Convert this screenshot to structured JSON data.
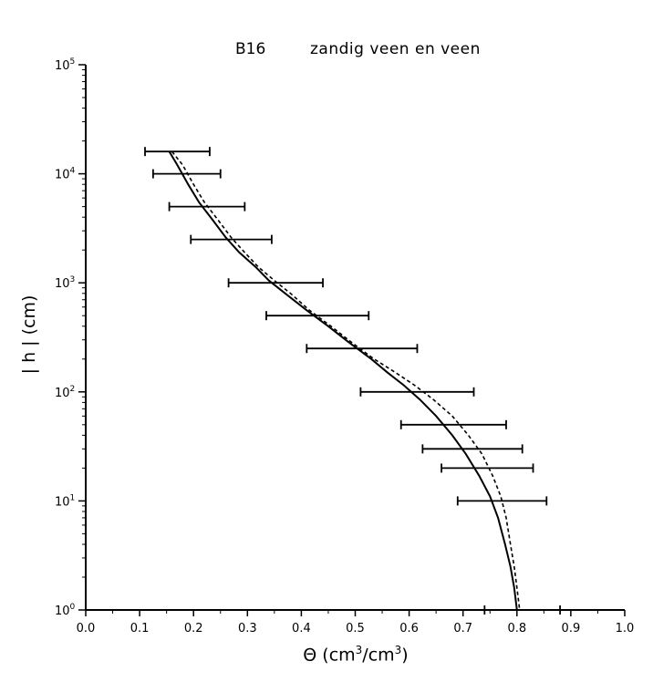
{
  "chart_data": {
    "type": "line",
    "title_code": "B16",
    "title_text": "zandig veen en veen",
    "xlabel_symbol": "Θ",
    "xlabel_units_a": "(cm",
    "xlabel_units_b": "/cm",
    "xlabel_units_c": ")",
    "xlabel_superscript": "3",
    "ylabel": "| h | (cm)",
    "xlim": [
      0.0,
      1.0
    ],
    "ylim": [
      1,
      100000
    ],
    "yscale": "log",
    "grid": false,
    "x_ticks": [
      "0.0",
      "0.1",
      "0.2",
      "0.3",
      "0.4",
      "0.5",
      "0.6",
      "0.7",
      "0.8",
      "0.9",
      "1.0"
    ],
    "y_ticks": [
      {
        "base": "10",
        "exp": "0",
        "value": 1
      },
      {
        "base": "10",
        "exp": "1",
        "value": 10
      },
      {
        "base": "10",
        "exp": "2",
        "value": 100
      },
      {
        "base": "10",
        "exp": "3",
        "value": 1000
      },
      {
        "base": "10",
        "exp": "4",
        "value": 10000
      },
      {
        "base": "10",
        "exp": "5",
        "value": 100000
      }
    ],
    "series": [
      {
        "style": "solid",
        "points": [
          [
            0.155,
            16000
          ],
          [
            0.17,
            12000
          ],
          [
            0.19,
            8000
          ],
          [
            0.21,
            5500
          ],
          [
            0.235,
            3800
          ],
          [
            0.26,
            2600
          ],
          [
            0.285,
            1900
          ],
          [
            0.315,
            1400
          ],
          [
            0.34,
            1050
          ],
          [
            0.37,
            800
          ],
          [
            0.41,
            560
          ],
          [
            0.45,
            400
          ],
          [
            0.49,
            280
          ],
          [
            0.53,
            200
          ],
          [
            0.56,
            150
          ],
          [
            0.59,
            115
          ],
          [
            0.62,
            85
          ],
          [
            0.65,
            60
          ],
          [
            0.68,
            40
          ],
          [
            0.705,
            27
          ],
          [
            0.73,
            17
          ],
          [
            0.75,
            11
          ],
          [
            0.765,
            7
          ],
          [
            0.778,
            4
          ],
          [
            0.788,
            2.5
          ],
          [
            0.795,
            1.6
          ],
          [
            0.8,
            1.0
          ]
        ]
      },
      {
        "style": "dashed",
        "points": [
          [
            0.16,
            16000
          ],
          [
            0.18,
            12000
          ],
          [
            0.2,
            8000
          ],
          [
            0.22,
            5500
          ],
          [
            0.245,
            3800
          ],
          [
            0.27,
            2600
          ],
          [
            0.295,
            1900
          ],
          [
            0.32,
            1400
          ],
          [
            0.35,
            1050
          ],
          [
            0.38,
            800
          ],
          [
            0.415,
            560
          ],
          [
            0.455,
            400
          ],
          [
            0.495,
            280
          ],
          [
            0.535,
            200
          ],
          [
            0.575,
            150
          ],
          [
            0.61,
            115
          ],
          [
            0.645,
            85
          ],
          [
            0.68,
            60
          ],
          [
            0.71,
            40
          ],
          [
            0.735,
            27
          ],
          [
            0.755,
            17
          ],
          [
            0.77,
            11
          ],
          [
            0.78,
            7
          ],
          [
            0.788,
            4
          ],
          [
            0.795,
            2.5
          ],
          [
            0.8,
            1.6
          ],
          [
            0.805,
            1.0
          ]
        ]
      }
    ],
    "error_bars": [
      {
        "y": 16000,
        "xmin": 0.11,
        "xmax": 0.23
      },
      {
        "y": 10000,
        "xmin": 0.125,
        "xmax": 0.25
      },
      {
        "y": 5000,
        "xmin": 0.155,
        "xmax": 0.295
      },
      {
        "y": 2500,
        "xmin": 0.195,
        "xmax": 0.345
      },
      {
        "y": 1000,
        "xmin": 0.265,
        "xmax": 0.44
      },
      {
        "y": 500,
        "xmin": 0.335,
        "xmax": 0.525
      },
      {
        "y": 250,
        "xmin": 0.41,
        "xmax": 0.615
      },
      {
        "y": 100,
        "xmin": 0.51,
        "xmax": 0.72
      },
      {
        "y": 50,
        "xmin": 0.585,
        "xmax": 0.78
      },
      {
        "y": 30,
        "xmin": 0.625,
        "xmax": 0.81
      },
      {
        "y": 20,
        "xmin": 0.66,
        "xmax": 0.83
      },
      {
        "y": 10,
        "xmin": 0.69,
        "xmax": 0.855
      },
      {
        "y": 1,
        "xmin": 0.74,
        "xmax": 0.88
      }
    ]
  }
}
